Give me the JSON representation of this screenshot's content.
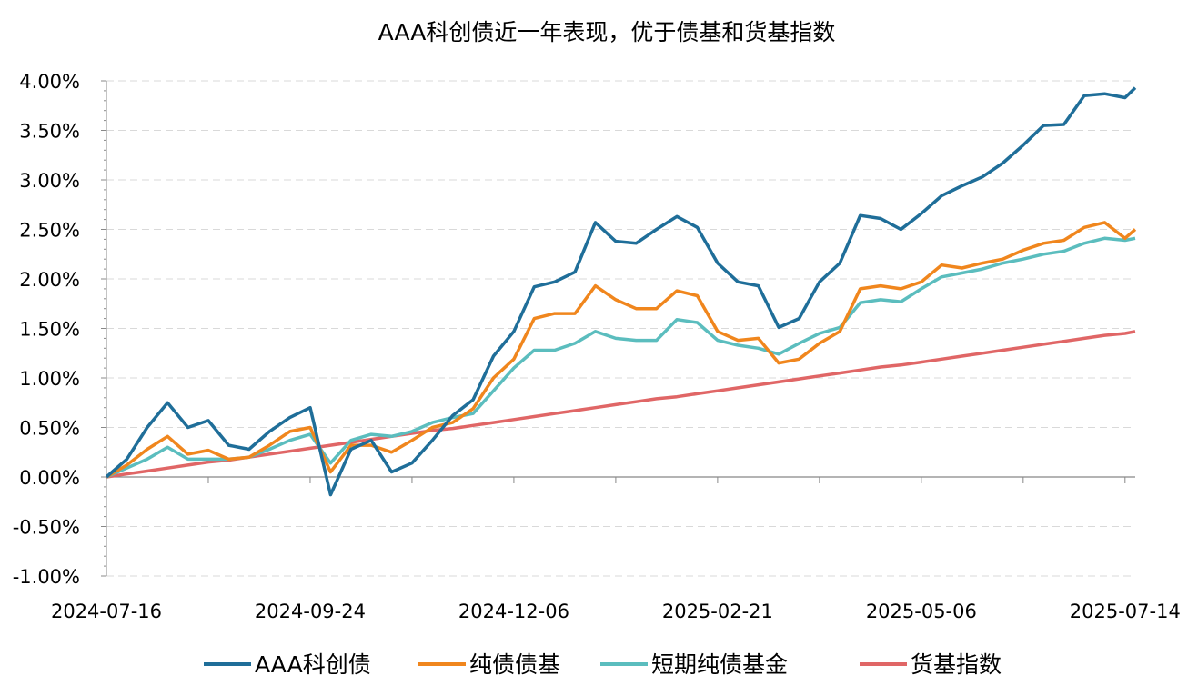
{
  "chart_data": {
    "type": "line",
    "title": "AAA科创债近一年表现，优于债基和货基指数",
    "xlabel": "",
    "ylabel": "",
    "x_unit": "trading-day index",
    "xlim": [
      0,
      252.5
    ],
    "ylim": [
      -1.0,
      4.0
    ],
    "y_tick_values": [
      -1.0,
      -0.5,
      0.0,
      0.5,
      1.0,
      1.5,
      2.0,
      2.5,
      3.0,
      3.5,
      4.0
    ],
    "y_tick_labels": [
      "-1.00%",
      "-0.50%",
      "0.00%",
      "0.50%",
      "1.00%",
      "1.50%",
      "2.00%",
      "2.50%",
      "3.00%",
      "3.50%",
      "4.00%"
    ],
    "x_tick_values": [
      0,
      50,
      100,
      150,
      200,
      250
    ],
    "x_tick_labels": [
      "2024-07-16",
      "2024-09-24",
      "2024-12-06",
      "2025-02-21",
      "2025-05-06",
      "2025-07-14"
    ],
    "grid": "horizontal dashed",
    "legend_position": "bottom",
    "x": [
      0,
      5,
      10,
      15,
      20,
      25,
      30,
      35,
      40,
      45,
      50,
      55,
      60,
      65,
      70,
      75,
      80,
      85,
      90,
      95,
      100,
      105,
      110,
      115,
      120,
      125,
      130,
      135,
      140,
      145,
      150,
      155,
      160,
      165,
      170,
      175,
      180,
      185,
      190,
      195,
      200,
      205,
      210,
      215,
      220,
      225,
      230,
      235,
      240,
      245,
      250,
      252.5
    ],
    "series": [
      {
        "name": "AAA科创债",
        "color": "#1F6E99",
        "values": [
          0,
          0.18,
          0.5,
          0.75,
          0.5,
          0.57,
          0.32,
          0.28,
          0.46,
          0.6,
          0.7,
          -0.18,
          0.28,
          0.37,
          0.05,
          0.14,
          0.37,
          0.62,
          0.78,
          1.22,
          1.47,
          1.92,
          1.97,
          2.07,
          2.57,
          2.38,
          2.36,
          2.5,
          2.63,
          2.52,
          2.16,
          1.97,
          1.93,
          1.51,
          1.6,
          1.97,
          2.16,
          2.64,
          2.61,
          2.5,
          2.66,
          2.84,
          2.94,
          3.03,
          3.17,
          3.35,
          3.55,
          3.56,
          3.85,
          3.87,
          3.83,
          3.93
        ]
      },
      {
        "name": "纯债债基",
        "color": "#F0861D",
        "values": [
          0,
          0.12,
          0.28,
          0.41,
          0.23,
          0.27,
          0.18,
          0.2,
          0.32,
          0.46,
          0.5,
          0.05,
          0.32,
          0.32,
          0.25,
          0.37,
          0.5,
          0.55,
          0.69,
          1.0,
          1.19,
          1.6,
          1.65,
          1.65,
          1.93,
          1.79,
          1.7,
          1.7,
          1.88,
          1.83,
          1.47,
          1.38,
          1.4,
          1.15,
          1.19,
          1.35,
          1.47,
          1.9,
          1.93,
          1.9,
          1.97,
          2.14,
          2.11,
          2.16,
          2.2,
          2.29,
          2.36,
          2.39,
          2.52,
          2.57,
          2.41,
          2.5
        ]
      },
      {
        "name": "短期纯债基金",
        "color": "#5BBDBE",
        "values": [
          0,
          0.09,
          0.18,
          0.3,
          0.18,
          0.18,
          0.18,
          0.2,
          0.28,
          0.37,
          0.43,
          0.14,
          0.37,
          0.43,
          0.41,
          0.46,
          0.55,
          0.6,
          0.64,
          0.87,
          1.1,
          1.28,
          1.28,
          1.35,
          1.47,
          1.4,
          1.38,
          1.38,
          1.59,
          1.56,
          1.38,
          1.33,
          1.3,
          1.24,
          1.35,
          1.45,
          1.51,
          1.76,
          1.79,
          1.77,
          1.9,
          2.02,
          2.06,
          2.1,
          2.16,
          2.2,
          2.25,
          2.28,
          2.36,
          2.41,
          2.39,
          2.41
        ]
      },
      {
        "name": "货基指数",
        "color": "#E06666",
        "values": [
          0,
          0.03,
          0.06,
          0.09,
          0.12,
          0.15,
          0.17,
          0.2,
          0.23,
          0.26,
          0.29,
          0.32,
          0.35,
          0.38,
          0.41,
          0.44,
          0.47,
          0.49,
          0.52,
          0.55,
          0.58,
          0.61,
          0.64,
          0.67,
          0.7,
          0.73,
          0.76,
          0.79,
          0.81,
          0.84,
          0.87,
          0.9,
          0.93,
          0.96,
          0.99,
          1.02,
          1.05,
          1.08,
          1.11,
          1.13,
          1.16,
          1.19,
          1.22,
          1.25,
          1.28,
          1.31,
          1.34,
          1.37,
          1.4,
          1.43,
          1.45,
          1.47
        ]
      }
    ]
  }
}
